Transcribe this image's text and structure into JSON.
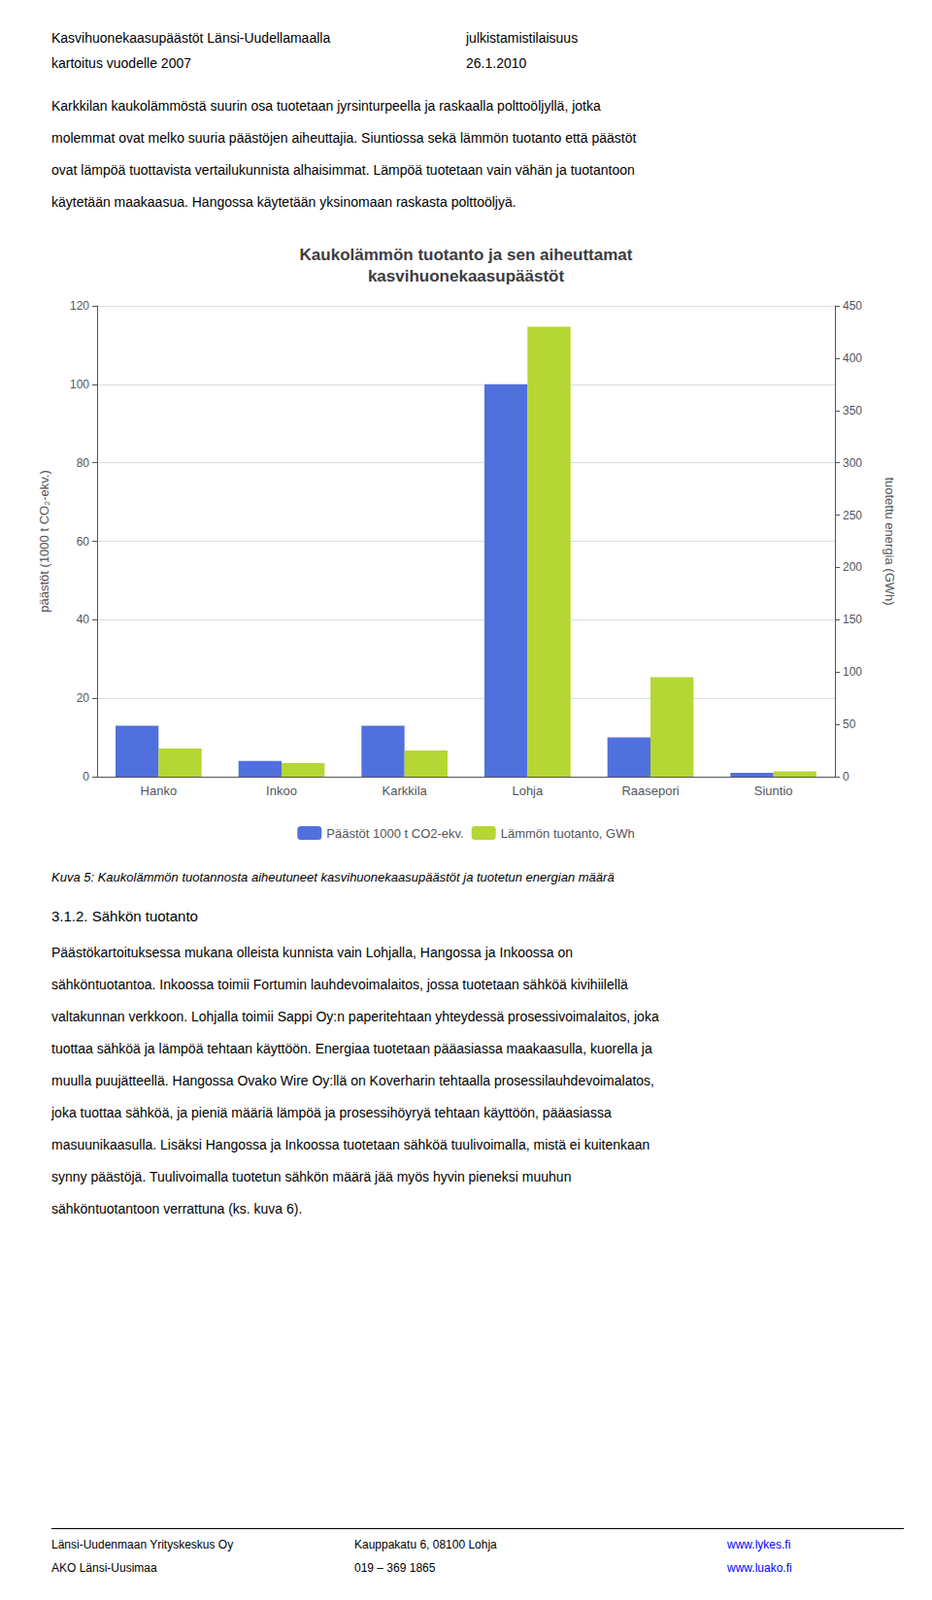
{
  "chart_data": {
    "type": "bar",
    "title": "Kaukolämmön tuotanto ja sen aiheuttamat\nkasvihuonekaasupäästöt",
    "categories": [
      "Hanko",
      "Inkoo",
      "Karkkila",
      "Lohja",
      "Raasepori",
      "Siuntio"
    ],
    "series": [
      {
        "name": "Päästöt 1000 t CO2-ekv.",
        "values": [
          13,
          4,
          13,
          100,
          10,
          1
        ]
      },
      {
        "name": "Lämmön tuotanto, GWh",
        "values": [
          27,
          13,
          25,
          430,
          95,
          5
        ],
        "axis": "y2"
      }
    ],
    "ylabel": "päästöt (1000 t CO₂-ekv.)",
    "y2label": "tuotettu energia (GWh)",
    "ylim": [
      0,
      120
    ],
    "yticks": [
      0,
      20,
      40,
      60,
      80,
      100,
      120
    ],
    "y2lim": [
      0,
      450
    ],
    "y2ticks": [
      0,
      50,
      100,
      150,
      200,
      250,
      300,
      350,
      400,
      450
    ],
    "grid": true,
    "legend": "bottom"
  },
  "header": [
    [
      "Kasvihuonekaasupäästöt Länsi-Uudellamaalla",
      "julkistamistilaisuus"
    ],
    [
      "kartoitus vuodelle 2007",
      "26.1.2010"
    ]
  ],
  "body_text": [
    "Karkkilan kaukolämmöstä suurin osa tuotetaan jyrsinturpeella ja raskaalla polttoöljyllä, jotka",
    "molemmat ovat melko suuria päästöjen aiheuttajia. Siuntiossa sekä lämmön tuotanto että päästöt",
    "ovat lämpöä tuottavista vertailukunnista alhaisimmat. Lämpöä tuotetaan vain vähän ja tuotantoon",
    "käytetään maakaasua. Hangossa käytetään yksinomaan raskasta polttoöljyä."
  ],
  "caption": "Kuva 5: Kaukolämmön tuotannosta aiheutuneet kasvihuonekaasupäästöt ja tuotetun energian määrä",
  "section_header": "3.1.2. Sähkön tuotanto",
  "section_text": [
    "Päästökartoituksessa mukana olleista kunnista vain Lohjalla, Hangossa ja Inkoossa on",
    "sähköntuotantoa. Inkoossa toimii Fortumin lauhdevoimalaitos, jossa tuotetaan sähköä kivihiilellä",
    "valtakunnan verkkoon. Lohjalla toimii Sappi Oy:n paperitehtaan yhteydessä prosessivoimalaitos, joka",
    "tuottaa sähköä ja lämpöä tehtaan käyttöön. Energiaa tuotetaan pääasiassa maakaasulla, kuorella ja",
    "muulla puujätteellä. Hangossa Ovako Wire Oy:llä on Koverharin tehtaalla prosessilauhdevoimalatos,",
    "joka tuottaa sähköä, ja pieniä määriä lämpöä ja prosessihöyryä tehtaan käyttöön, pääasiassa",
    "masuunikaasulla. Lisäksi Hangossa ja Inkoossa tuotetaan sähköä tuulivoimalla, mistä ei kuitenkaan",
    "synny päästöjä. Tuulivoimalla tuotetun sähkön määrä jää myös hyvin pieneksi muuhun",
    "sähköntuotantoon verrattuna (ks. kuva 6)."
  ],
  "footer": [
    [
      "Länsi-Uudenmaan Yrityskeskus Oy",
      "Kauppakatu 6, 08100 Lohja",
      "www.lykes.fi"
    ],
    [
      "AKO Länsi-Uusimaa",
      "019 – 369 1865",
      "www.luako.fi"
    ]
  ]
}
